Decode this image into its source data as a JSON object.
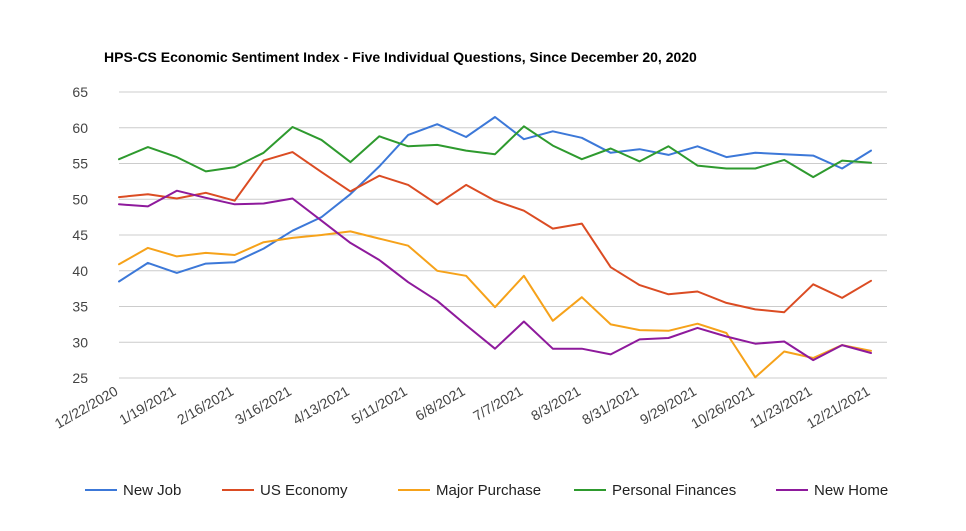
{
  "chart_data": {
    "type": "line",
    "title": "HPS-CS Economic Sentiment Index - Five Individual Questions, Since December 20, 2020",
    "ylim": [
      25,
      65
    ],
    "yticks": [
      25,
      30,
      35,
      40,
      45,
      50,
      55,
      60,
      65
    ],
    "grid": true,
    "legend_position": "bottom",
    "x_labels": [
      "12/22/2020",
      "1/19/2021",
      "2/16/2021",
      "3/16/2021",
      "4/13/2021",
      "5/11/2021",
      "6/8/2021",
      "7/7/2021",
      "8/3/2021",
      "8/31/2021",
      "9/29/2021",
      "10/26/2021",
      "11/23/2021",
      "12/21/2021"
    ],
    "series": [
      {
        "name": "New Job",
        "color": "#3c78d8",
        "values": [
          38.5,
          41.1,
          39.7,
          41.0,
          41.2,
          43.1,
          45.6,
          47.5,
          50.7,
          54.6,
          59.0,
          60.5,
          58.7,
          61.5,
          58.4,
          59.5,
          58.6,
          56.5,
          57.0,
          56.2,
          57.4,
          55.9,
          56.5,
          56.3,
          56.1,
          54.3,
          56.8
        ]
      },
      {
        "name": "US Economy",
        "color": "#db4c23",
        "values": [
          50.3,
          50.7,
          50.1,
          50.9,
          49.8,
          55.4,
          56.6,
          53.8,
          51.1,
          53.3,
          52.0,
          49.3,
          52.0,
          49.8,
          48.4,
          45.9,
          46.6,
          40.5,
          38.0,
          36.7,
          37.1,
          35.5,
          34.6,
          34.2,
          38.1,
          36.2,
          38.6
        ]
      },
      {
        "name": "Major Purchase",
        "color": "#f6a21a",
        "values": [
          40.9,
          43.2,
          42.0,
          42.5,
          42.2,
          44.0,
          44.6,
          45.0,
          45.5,
          44.5,
          43.5,
          40.0,
          39.3,
          34.9,
          39.3,
          33.0,
          36.3,
          32.5,
          31.7,
          31.6,
          32.6,
          31.3,
          25.1,
          28.7,
          27.8,
          29.6,
          28.8
        ]
      },
      {
        "name": "Personal Finances",
        "color": "#2e9a2e",
        "values": [
          55.6,
          57.3,
          55.9,
          53.9,
          54.5,
          56.5,
          60.1,
          58.3,
          55.2,
          58.8,
          57.4,
          57.6,
          56.8,
          56.3,
          60.2,
          57.5,
          55.6,
          57.1,
          55.3,
          57.4,
          54.7,
          54.3,
          54.3,
          55.5,
          53.1,
          55.4,
          55.1
        ]
      },
      {
        "name": "New Home",
        "color": "#8e1a9c",
        "values": [
          49.3,
          49.0,
          51.2,
          50.2,
          49.3,
          49.4,
          50.1,
          47.0,
          43.9,
          41.5,
          38.4,
          35.8,
          32.4,
          29.1,
          32.9,
          29.1,
          29.1,
          28.3,
          30.4,
          30.6,
          32.0,
          30.8,
          29.8,
          30.1,
          27.5,
          29.6,
          28.5
        ]
      }
    ]
  }
}
